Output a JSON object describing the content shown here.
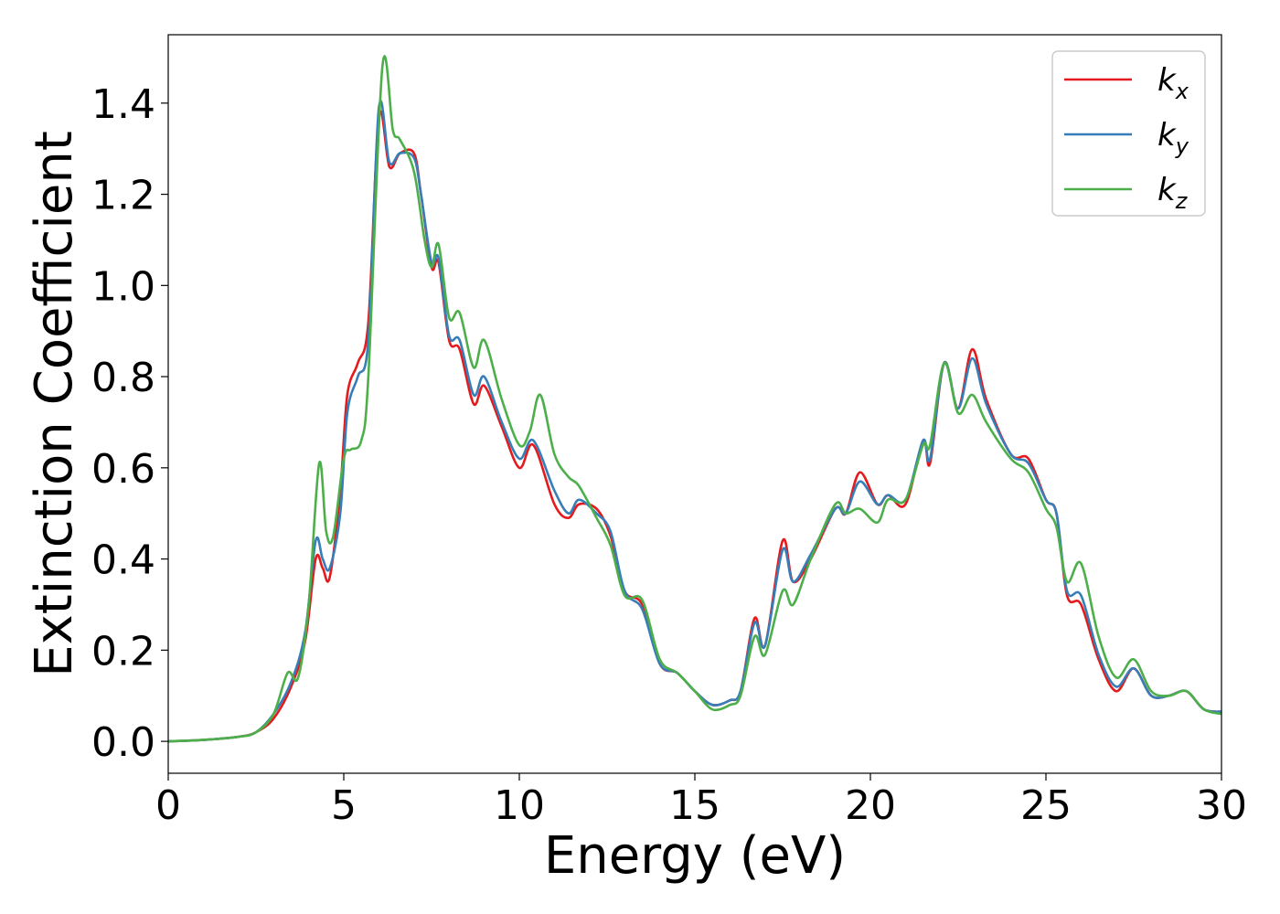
{
  "chart_data": {
    "type": "line",
    "title": "",
    "xlabel": "Energy (eV)",
    "ylabel": "Extinction Coefficient",
    "xlim": [
      0,
      30
    ],
    "ylim": [
      -0.07,
      1.55
    ],
    "xticks": [
      0,
      5,
      10,
      15,
      20,
      25,
      30
    ],
    "xtick_labels": [
      "0",
      "5",
      "10",
      "15",
      "20",
      "25",
      "30"
    ],
    "yticks": [
      0.0,
      0.2,
      0.4,
      0.6,
      0.8,
      1.0,
      1.2,
      1.4
    ],
    "ytick_labels": [
      "0.0",
      "0.2",
      "0.4",
      "0.6",
      "0.8",
      "1.0",
      "1.2",
      "1.4"
    ],
    "grid": false,
    "legend": {
      "position": "top-right"
    },
    "series": [
      {
        "name": "k",
        "subscript": "x",
        "color": "#e41a1c",
        "points": [
          [
            0,
            0
          ],
          [
            1,
            0.003
          ],
          [
            2,
            0.01
          ],
          [
            2.5,
            0.02
          ],
          [
            3,
            0.05
          ],
          [
            3.5,
            0.12
          ],
          [
            3.9,
            0.22
          ],
          [
            4.2,
            0.4
          ],
          [
            4.4,
            0.38
          ],
          [
            4.6,
            0.36
          ],
          [
            4.9,
            0.55
          ],
          [
            5.1,
            0.76
          ],
          [
            5.4,
            0.83
          ],
          [
            5.7,
            0.92
          ],
          [
            6.0,
            1.37
          ],
          [
            6.3,
            1.26
          ],
          [
            6.6,
            1.29
          ],
          [
            7.0,
            1.29
          ],
          [
            7.2,
            1.2
          ],
          [
            7.5,
            1.04
          ],
          [
            7.7,
            1.05
          ],
          [
            8.0,
            0.88
          ],
          [
            8.3,
            0.86
          ],
          [
            8.7,
            0.74
          ],
          [
            9.0,
            0.78
          ],
          [
            9.5,
            0.69
          ],
          [
            10.0,
            0.6
          ],
          [
            10.4,
            0.65
          ],
          [
            11.0,
            0.52
          ],
          [
            11.4,
            0.49
          ],
          [
            11.7,
            0.52
          ],
          [
            12.2,
            0.51
          ],
          [
            12.6,
            0.45
          ],
          [
            13.0,
            0.33
          ],
          [
            13.5,
            0.3
          ],
          [
            14.0,
            0.17
          ],
          [
            14.5,
            0.15
          ],
          [
            15.0,
            0.11
          ],
          [
            15.5,
            0.08
          ],
          [
            16.0,
            0.09
          ],
          [
            16.3,
            0.11
          ],
          [
            16.7,
            0.27
          ],
          [
            17.0,
            0.21
          ],
          [
            17.5,
            0.44
          ],
          [
            17.8,
            0.35
          ],
          [
            18.3,
            0.4
          ],
          [
            19.0,
            0.51
          ],
          [
            19.3,
            0.5
          ],
          [
            19.7,
            0.59
          ],
          [
            20.2,
            0.52
          ],
          [
            20.5,
            0.54
          ],
          [
            21.0,
            0.52
          ],
          [
            21.5,
            0.66
          ],
          [
            21.7,
            0.61
          ],
          [
            22.1,
            0.83
          ],
          [
            22.5,
            0.73
          ],
          [
            22.9,
            0.86
          ],
          [
            23.3,
            0.75
          ],
          [
            24.0,
            0.63
          ],
          [
            24.5,
            0.62
          ],
          [
            25.0,
            0.53
          ],
          [
            25.3,
            0.5
          ],
          [
            25.6,
            0.32
          ],
          [
            26.0,
            0.3
          ],
          [
            26.5,
            0.18
          ],
          [
            27.0,
            0.11
          ],
          [
            27.5,
            0.16
          ],
          [
            28.0,
            0.1
          ],
          [
            28.5,
            0.1
          ],
          [
            29.0,
            0.11
          ],
          [
            29.5,
            0.07
          ],
          [
            30.0,
            0.065
          ]
        ]
      },
      {
        "name": "k",
        "subscript": "y",
        "color": "#377eb8",
        "points": [
          [
            0,
            0
          ],
          [
            1,
            0.003
          ],
          [
            2,
            0.01
          ],
          [
            2.5,
            0.02
          ],
          [
            3,
            0.06
          ],
          [
            3.5,
            0.13
          ],
          [
            3.9,
            0.24
          ],
          [
            4.2,
            0.44
          ],
          [
            4.4,
            0.4
          ],
          [
            4.6,
            0.38
          ],
          [
            4.9,
            0.5
          ],
          [
            5.1,
            0.72
          ],
          [
            5.4,
            0.8
          ],
          [
            5.7,
            0.88
          ],
          [
            6.0,
            1.39
          ],
          [
            6.3,
            1.27
          ],
          [
            6.6,
            1.29
          ],
          [
            7.0,
            1.28
          ],
          [
            7.2,
            1.2
          ],
          [
            7.5,
            1.05
          ],
          [
            7.7,
            1.06
          ],
          [
            8.0,
            0.89
          ],
          [
            8.3,
            0.88
          ],
          [
            8.7,
            0.76
          ],
          [
            9.0,
            0.8
          ],
          [
            9.5,
            0.7
          ],
          [
            10.0,
            0.62
          ],
          [
            10.4,
            0.66
          ],
          [
            11.0,
            0.55
          ],
          [
            11.4,
            0.5
          ],
          [
            11.7,
            0.53
          ],
          [
            12.2,
            0.5
          ],
          [
            12.6,
            0.46
          ],
          [
            13.0,
            0.33
          ],
          [
            13.5,
            0.29
          ],
          [
            14.0,
            0.17
          ],
          [
            14.5,
            0.15
          ],
          [
            15.0,
            0.11
          ],
          [
            15.5,
            0.08
          ],
          [
            16.0,
            0.09
          ],
          [
            16.3,
            0.11
          ],
          [
            16.7,
            0.26
          ],
          [
            17.0,
            0.21
          ],
          [
            17.5,
            0.42
          ],
          [
            17.8,
            0.35
          ],
          [
            18.3,
            0.41
          ],
          [
            19.0,
            0.51
          ],
          [
            19.3,
            0.5
          ],
          [
            19.7,
            0.57
          ],
          [
            20.2,
            0.52
          ],
          [
            20.5,
            0.54
          ],
          [
            21.0,
            0.53
          ],
          [
            21.5,
            0.66
          ],
          [
            21.7,
            0.62
          ],
          [
            22.1,
            0.83
          ],
          [
            22.5,
            0.73
          ],
          [
            22.9,
            0.84
          ],
          [
            23.3,
            0.74
          ],
          [
            24.0,
            0.63
          ],
          [
            24.5,
            0.61
          ],
          [
            25.0,
            0.53
          ],
          [
            25.3,
            0.5
          ],
          [
            25.6,
            0.33
          ],
          [
            26.0,
            0.32
          ],
          [
            26.5,
            0.19
          ],
          [
            27.0,
            0.12
          ],
          [
            27.5,
            0.16
          ],
          [
            28.0,
            0.1
          ],
          [
            28.5,
            0.1
          ],
          [
            29.0,
            0.11
          ],
          [
            29.5,
            0.07
          ],
          [
            30.0,
            0.065
          ]
        ]
      },
      {
        "name": "k",
        "subscript": "z",
        "color": "#4daf4a",
        "points": [
          [
            0,
            0
          ],
          [
            1,
            0.003
          ],
          [
            2,
            0.01
          ],
          [
            2.5,
            0.02
          ],
          [
            3.0,
            0.06
          ],
          [
            3.4,
            0.15
          ],
          [
            3.7,
            0.14
          ],
          [
            4.0,
            0.3
          ],
          [
            4.3,
            0.61
          ],
          [
            4.5,
            0.46
          ],
          [
            4.7,
            0.45
          ],
          [
            5.0,
            0.62
          ],
          [
            5.2,
            0.64
          ],
          [
            5.5,
            0.66
          ],
          [
            5.7,
            0.8
          ],
          [
            6.1,
            1.48
          ],
          [
            6.4,
            1.34
          ],
          [
            6.6,
            1.32
          ],
          [
            7.0,
            1.25
          ],
          [
            7.3,
            1.1
          ],
          [
            7.5,
            1.04
          ],
          [
            7.7,
            1.09
          ],
          [
            8.0,
            0.93
          ],
          [
            8.3,
            0.94
          ],
          [
            8.7,
            0.82
          ],
          [
            9.0,
            0.88
          ],
          [
            9.5,
            0.75
          ],
          [
            10.0,
            0.65
          ],
          [
            10.3,
            0.68
          ],
          [
            10.6,
            0.76
          ],
          [
            11.0,
            0.63
          ],
          [
            11.4,
            0.58
          ],
          [
            11.7,
            0.56
          ],
          [
            12.2,
            0.49
          ],
          [
            12.6,
            0.43
          ],
          [
            13.0,
            0.32
          ],
          [
            13.5,
            0.31
          ],
          [
            14.0,
            0.18
          ],
          [
            14.5,
            0.15
          ],
          [
            15.0,
            0.11
          ],
          [
            15.5,
            0.07
          ],
          [
            16.0,
            0.08
          ],
          [
            16.3,
            0.1
          ],
          [
            16.7,
            0.23
          ],
          [
            17.0,
            0.19
          ],
          [
            17.5,
            0.33
          ],
          [
            17.8,
            0.3
          ],
          [
            18.3,
            0.4
          ],
          [
            19.0,
            0.52
          ],
          [
            19.3,
            0.5
          ],
          [
            19.7,
            0.51
          ],
          [
            20.2,
            0.48
          ],
          [
            20.5,
            0.53
          ],
          [
            21.0,
            0.53
          ],
          [
            21.5,
            0.65
          ],
          [
            21.7,
            0.65
          ],
          [
            22.1,
            0.83
          ],
          [
            22.5,
            0.72
          ],
          [
            22.9,
            0.76
          ],
          [
            23.3,
            0.7
          ],
          [
            24.0,
            0.62
          ],
          [
            24.5,
            0.59
          ],
          [
            25.0,
            0.51
          ],
          [
            25.3,
            0.47
          ],
          [
            25.6,
            0.35
          ],
          [
            26.0,
            0.39
          ],
          [
            26.5,
            0.23
          ],
          [
            27.0,
            0.14
          ],
          [
            27.5,
            0.18
          ],
          [
            28.0,
            0.11
          ],
          [
            28.5,
            0.1
          ],
          [
            29.0,
            0.11
          ],
          [
            29.5,
            0.07
          ],
          [
            30.0,
            0.06
          ]
        ]
      }
    ]
  }
}
